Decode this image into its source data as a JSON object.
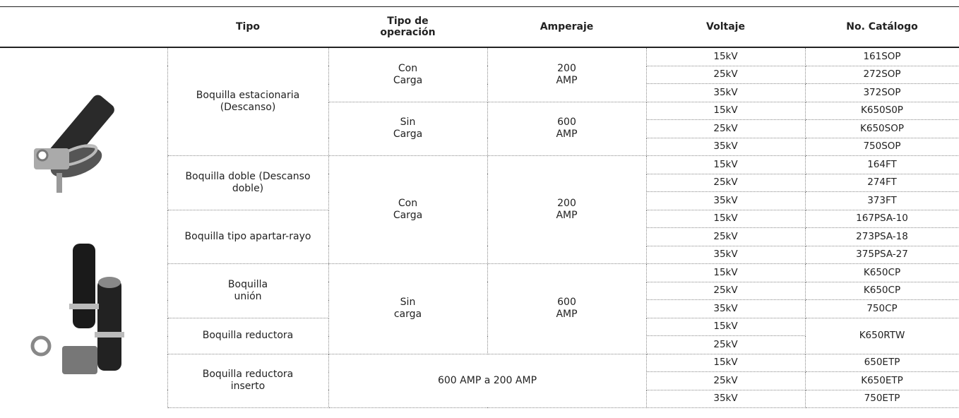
{
  "table": {
    "headers": [
      "Tipo",
      "Tipo de operación",
      "Amperaje",
      "Voltaje",
      "No. Catálogo"
    ],
    "tipos": [
      "Boquilla estacionaria (Descanso)",
      "Boquilla doble (Descanso doble)",
      "Boquilla tipo apartar-rayo",
      "Boquilla unión",
      "Boquilla reductora",
      "Boquilla reductora inserto"
    ],
    "operaciones": [
      "Con Carga",
      "Sin Carga",
      "Con Carga",
      "Sin carga"
    ],
    "amperajes": [
      "200 AMP",
      "600 AMP",
      "200 AMP",
      "600 AMP"
    ],
    "inserto_rango": "600 AMP a 200 AMP",
    "voltajes": [
      "15kV",
      "25kV",
      "35kV",
      "15kV",
      "25kV",
      "35kV",
      "15kV",
      "25kV",
      "35kV",
      "15kV",
      "25kV",
      "35kV",
      "15kV",
      "25kV",
      "35kV",
      "15kV",
      "25kV",
      "15kV",
      "25kV",
      "35kV"
    ],
    "catalogos": [
      "161SOP",
      "272SOP",
      "372SOP",
      "K650S0P",
      "K650SOP",
      "750SOP",
      "164FT",
      "274FT",
      "373FT",
      "167PSA-10",
      "273PSA-18",
      "375PSA-27",
      "K650CP",
      "K650CP",
      "750CP",
      "K650RTW",
      "650ETP",
      "K650ETP",
      "750ETP"
    ]
  }
}
